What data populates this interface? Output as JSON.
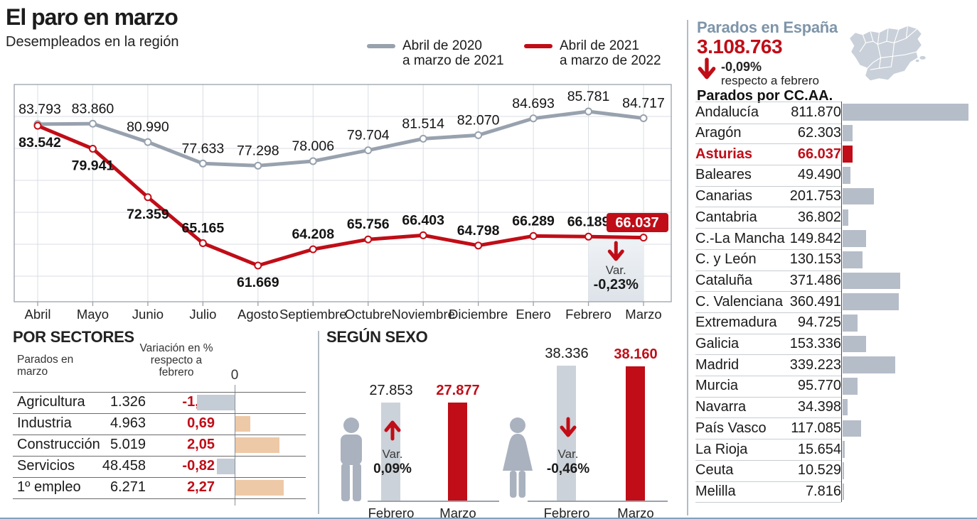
{
  "colors": {
    "red": "#c00d17",
    "gray_line": "#98a2ae",
    "grid": "#d9dee3",
    "plot_border": "#9aa1a8",
    "bar_gray": "#b5bdc9",
    "bar_negative": "#c4ccd6",
    "bar_positive": "#eec9a7",
    "slate_heading": "#7e95a9",
    "icon_gray": "#a9b2be",
    "shade_top": "#eff2f5",
    "shade_bottom": "#dde3e9"
  },
  "header": {
    "title": "El paro en marzo",
    "subtitle": "Desempleados en la región"
  },
  "legend": [
    {
      "line1": "Abril de 2020",
      "line2": "a marzo de 2021",
      "color": "#98a2ae"
    },
    {
      "line1": "Abril de 2021",
      "line2": "a marzo de 2022",
      "color": "#c00d17"
    }
  ],
  "chart_data": [
    {
      "id": "main-line-chart",
      "type": "line",
      "title": "Desempleados en la región",
      "x": [
        "Abril",
        "Mayo",
        "Junio",
        "Julio",
        "Agosto",
        "Septiembre",
        "Octubre",
        "Noviembre",
        "Diciembre",
        "Enero",
        "Febrero",
        "Marzo"
      ],
      "ylim": [
        56000,
        90000
      ],
      "grid": true,
      "legend_position": "top-right",
      "series": [
        {
          "name": "Abril de 2020 a marzo de 2021",
          "color": "#98a2ae",
          "values": [
            83793,
            83860,
            80990,
            77633,
            77298,
            78006,
            79704,
            81514,
            82070,
            84693,
            85781,
            84717
          ],
          "labels": [
            "83.793",
            "83.860",
            "80.990",
            "77.633",
            "77.298",
            "78.006",
            "79.704",
            "81.514",
            "82.070",
            "84.693",
            "85.781",
            "84.717"
          ],
          "label_pos": [
            "above",
            "above",
            "above",
            "above",
            "above",
            "above",
            "above",
            "above",
            "above",
            "above",
            "above",
            "above"
          ],
          "bold_labels": false
        },
        {
          "name": "Abril de 2021 a marzo de 2022",
          "color": "#c00d17",
          "values": [
            83542,
            79941,
            72359,
            65165,
            61669,
            64208,
            65756,
            66403,
            64798,
            66289,
            66189,
            66037
          ],
          "labels": [
            "83.542",
            "79.941",
            "72.359",
            "65.165",
            "61.669",
            "64.208",
            "65.756",
            "66.403",
            "64.798",
            "66.289",
            "66.189",
            "66.037"
          ],
          "label_pos": [
            "below",
            "below",
            "below",
            "above",
            "below",
            "above",
            "above",
            "above",
            "above",
            "above",
            "above",
            "badge"
          ],
          "bold_labels": true
        }
      ],
      "annotation": {
        "var_label": "Var.",
        "var_value": "-0,23%",
        "arrow": "down",
        "between": [
          "Febrero",
          "Marzo"
        ]
      }
    },
    {
      "id": "sectors",
      "type": "bar",
      "title": "POR SECTORES",
      "col_headers": [
        "Parados en\nmarzo",
        "Variación en %\nrespecto a\nfebrero"
      ],
      "zero_label": "0",
      "rows": [
        {
          "label": "Agricultura",
          "value": "1.326",
          "variation": "-1,78",
          "var_num": -1.78
        },
        {
          "label": "Industria",
          "value": "4.963",
          "variation": "0,69",
          "var_num": 0.69
        },
        {
          "label": "Construcción",
          "value": "5.019",
          "variation": "2,05",
          "var_num": 2.05
        },
        {
          "label": "Servicios",
          "value": "48.458",
          "variation": "-0,82",
          "var_num": -0.82
        },
        {
          "label": "1º empleo",
          "value": "6.271",
          "variation": "2,27",
          "var_num": 2.27
        }
      ]
    },
    {
      "id": "sexo",
      "type": "bar",
      "title": "SEGÚN SEXO",
      "categories": [
        "Febrero",
        "Marzo"
      ],
      "groups": [
        {
          "icon": "male",
          "values": [
            27853,
            27877
          ],
          "labels": [
            "27.853",
            "27.877"
          ],
          "var_label": "Var.",
          "var_value": "0,09%",
          "arrow": "up"
        },
        {
          "icon": "female",
          "values": [
            38336,
            38160
          ],
          "labels": [
            "38.336",
            "38.160"
          ],
          "var_label": "Var.",
          "var_value": "-0,46%",
          "arrow": "down"
        }
      ]
    },
    {
      "id": "ccaa",
      "type": "bar",
      "title": "Parados por CC.AA.",
      "xmax": 811870,
      "rows": [
        {
          "label": "Andalucía",
          "display": "811.870",
          "value": 811870,
          "highlight": false
        },
        {
          "label": "Aragón",
          "display": "62.303",
          "value": 62303,
          "highlight": false
        },
        {
          "label": "Asturias",
          "display": "66.037",
          "value": 66037,
          "highlight": true
        },
        {
          "label": "Baleares",
          "display": "49.490",
          "value": 49490,
          "highlight": false
        },
        {
          "label": "Canarias",
          "display": "201.753",
          "value": 201753,
          "highlight": false
        },
        {
          "label": "Cantabria",
          "display": "36.802",
          "value": 36802,
          "highlight": false
        },
        {
          "label": "C.-La Mancha",
          "display": "149.842",
          "value": 149842,
          "highlight": false
        },
        {
          "label": "C. y León",
          "display": "130.153",
          "value": 130153,
          "highlight": false
        },
        {
          "label": "Cataluña",
          "display": "371.486",
          "value": 371486,
          "highlight": false
        },
        {
          "label": "C. Valenciana",
          "display": "360.491",
          "value": 360491,
          "highlight": false
        },
        {
          "label": "Extremadura",
          "display": "94.725",
          "value": 94725,
          "highlight": false
        },
        {
          "label": "Galicia",
          "display": "153.336",
          "value": 153336,
          "highlight": false
        },
        {
          "label": "Madrid",
          "display": "339.223",
          "value": 339223,
          "highlight": false
        },
        {
          "label": "Murcia",
          "display": "95.770",
          "value": 95770,
          "highlight": false
        },
        {
          "label": "Navarra",
          "display": "34.398",
          "value": 34398,
          "highlight": false
        },
        {
          "label": "País Vasco",
          "display": "117.085",
          "value": 117085,
          "highlight": false
        },
        {
          "label": "La Rioja",
          "display": "15.654",
          "value": 15654,
          "highlight": false
        },
        {
          "label": "Ceuta",
          "display": "10.529",
          "value": 10529,
          "highlight": false
        },
        {
          "label": "Melilla",
          "display": "7.816",
          "value": 7816,
          "highlight": false
        }
      ]
    }
  ],
  "spain_panel": {
    "title": "Parados en España",
    "total": "3.108.763",
    "change": "-0,09%",
    "change_caption": "respecto a febrero"
  }
}
